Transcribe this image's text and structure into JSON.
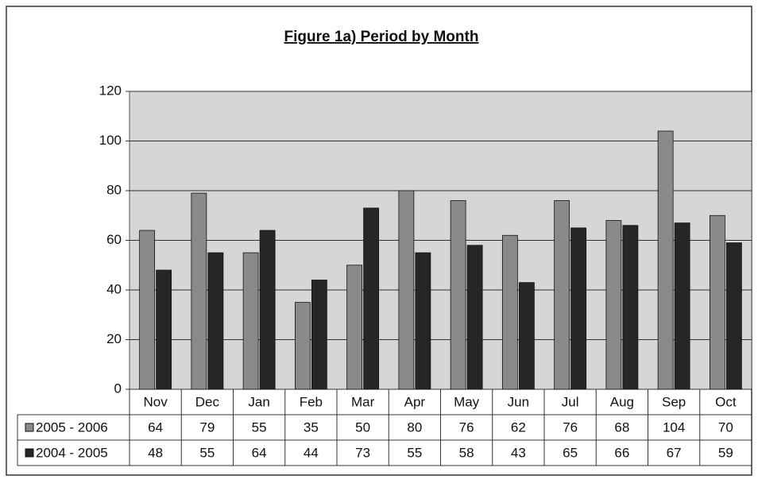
{
  "chart_data": {
    "type": "bar",
    "title": "Figure 1a) Period by Month",
    "categories": [
      "Nov",
      "Dec",
      "Jan",
      "Feb",
      "Mar",
      "Apr",
      "May",
      "Jun",
      "Jul",
      "Aug",
      "Sep",
      "Oct"
    ],
    "series": [
      {
        "name": "2005 - 2006",
        "color": "#8a8a8a",
        "values": [
          64,
          79,
          55,
          35,
          50,
          80,
          76,
          62,
          76,
          68,
          104,
          70
        ]
      },
      {
        "name": "2004 - 2005",
        "color": "#262626",
        "values": [
          48,
          55,
          64,
          44,
          73,
          55,
          58,
          43,
          65,
          66,
          67,
          59
        ]
      }
    ],
    "ylim": [
      0,
      120
    ],
    "yticks": [
      0,
      20,
      40,
      60,
      80,
      100,
      120
    ],
    "grid": true,
    "data_table": true
  }
}
